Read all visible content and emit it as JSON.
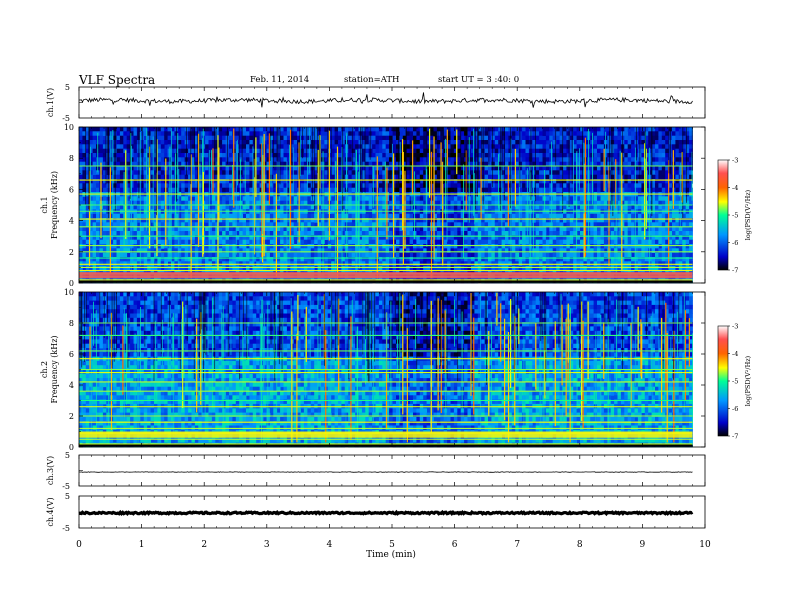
{
  "header": {
    "title": "VLF  Spectra",
    "date": "Feb. 11, 2014",
    "station": "station=ATH",
    "start": "start  UT  =   3  :40: 0"
  },
  "x_axis": {
    "label": "Time  (min)",
    "range": [
      0,
      10
    ],
    "ticks": [
      "0",
      "1",
      "2",
      "3",
      "4",
      "5",
      "6",
      "7",
      "8",
      "9",
      "10"
    ]
  },
  "panels": {
    "ch1_wave": {
      "label": "ch.1(V)",
      "ticks": [
        "5",
        "-5"
      ],
      "range": [
        -5,
        5
      ],
      "baseline_v": 0.6
    },
    "ch1_spec": {
      "label": "ch.1",
      "ylabel": "Frequency  (kHz)",
      "range": [
        0,
        10
      ],
      "ticks": [
        "0",
        "2",
        "4",
        "6",
        "8",
        "10"
      ]
    },
    "ch2_spec": {
      "label": "ch.2",
      "ylabel": "Frequency  (kHz)",
      "range": [
        0,
        10
      ],
      "ticks": [
        "0",
        "2",
        "4",
        "6",
        "8",
        "10"
      ]
    },
    "ch3_wave": {
      "label": "ch.3(V)",
      "ticks": [
        "5",
        "-5"
      ],
      "range": [
        -5,
        5
      ],
      "baseline_v": -0.5
    },
    "ch4_wave": {
      "label": "ch.4(V)",
      "ticks": [
        "5",
        "-5"
      ],
      "range": [
        -5,
        5
      ],
      "baseline_v": -0.3
    }
  },
  "colorbar": {
    "label": "log(PSD(V²/Hz)",
    "range": [
      -7,
      -3
    ],
    "ticks": [
      "-3",
      "-4",
      "-5",
      "-6",
      "-7"
    ],
    "colors": [
      "#000000",
      "#0000c8",
      "#0096ff",
      "#00ff96",
      "#ffff00",
      "#ff6400",
      "#ff5050",
      "#ffffff"
    ]
  },
  "chart_data": {
    "type": "heatmap",
    "title": "VLF  Spectra",
    "xlabel": "Time  (min)",
    "ylabel": "Frequency  (kHz)",
    "xlim": [
      0,
      10
    ],
    "ylim": [
      0,
      10
    ],
    "data_end_min": 9.8,
    "series": [
      {
        "name": "ch.1",
        "data_end_min": 9.8,
        "spectral_lines_khz": [
          0.2,
          0.4,
          0.6,
          0.8,
          1.0,
          1.2,
          1.6,
          2.0,
          2.4,
          3.0,
          3.6,
          4.1,
          4.6,
          5.0,
          5.7,
          6.6,
          7.5
        ],
        "typical_log_psd": -6.0,
        "strong_band_khz": [
          0.3,
          0.7
        ],
        "strong_band_log_psd": -3.5
      },
      {
        "name": "ch.2",
        "data_end_min": 9.8,
        "spectral_lines_khz": [
          0.2,
          0.5,
          0.9,
          1.2,
          1.6,
          2.0,
          2.6,
          3.0,
          3.6,
          4.2,
          4.8,
          5.0,
          5.7,
          6.2,
          7.2,
          8.0
        ],
        "typical_log_psd": -5.8,
        "strong_band_khz": [
          0.6,
          1.0
        ],
        "strong_band_log_psd": -4.5
      }
    ]
  }
}
